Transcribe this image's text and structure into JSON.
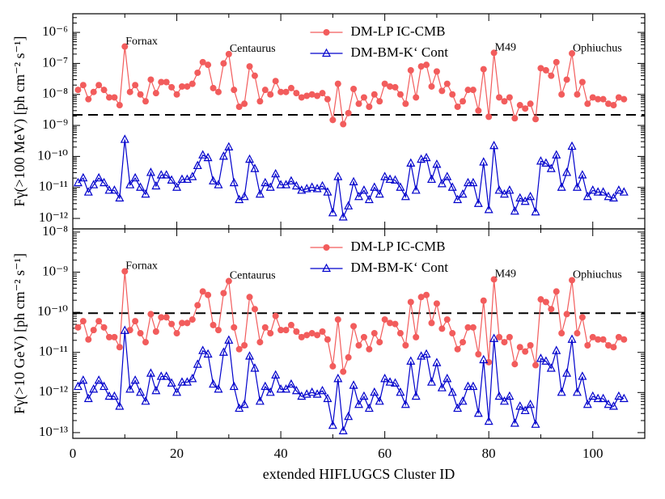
{
  "chart_data": [
    {
      "type": "line",
      "log_y": true,
      "ylabel": "Fγ(>100 MeV) [ph cm⁻² s⁻¹]",
      "xlim": [
        0,
        110
      ],
      "xticks": [
        0,
        20,
        40,
        60,
        80,
        100
      ],
      "xtick_labels": false,
      "ylim": [
        4.6e-13,
        4e-06
      ],
      "yticks": [
        {
          "value": 1e-12,
          "label": "10⁻¹²"
        },
        {
          "value": 1e-11,
          "label": "10⁻¹¹"
        },
        {
          "value": 1e-10,
          "label": "10⁻¹⁰"
        },
        {
          "value": 1e-09,
          "label": "10⁻⁹"
        },
        {
          "value": 1e-08,
          "label": "10⁻⁸"
        },
        {
          "value": 1e-07,
          "label": "10⁻⁷"
        },
        {
          "value": 1e-06,
          "label": "10⁻⁶"
        }
      ],
      "hline": 2.2e-09,
      "legend": "upper center",
      "x": [
        1,
        2,
        3,
        4,
        5,
        6,
        7,
        8,
        9,
        10,
        11,
        12,
        13,
        14,
        15,
        16,
        17,
        18,
        19,
        20,
        21,
        22,
        23,
        24,
        25,
        26,
        27,
        28,
        29,
        30,
        31,
        32,
        33,
        34,
        35,
        36,
        37,
        38,
        39,
        40,
        41,
        42,
        43,
        44,
        45,
        46,
        47,
        48,
        49,
        50,
        51,
        52,
        53,
        54,
        55,
        56,
        57,
        58,
        59,
        60,
        61,
        62,
        63,
        64,
        65,
        66,
        67,
        68,
        69,
        70,
        71,
        72,
        73,
        74,
        75,
        76,
        77,
        78,
        79,
        80,
        81,
        82,
        83,
        84,
        85,
        86,
        87,
        88,
        89,
        90,
        91,
        92,
        93,
        94,
        95,
        96,
        97,
        98,
        99,
        100,
        101,
        102,
        103,
        104,
        105,
        106
      ],
      "series": [
        {
          "name": "DM-LP IC-CMB",
          "color": "#f25c5c",
          "marker": "circle",
          "values": [
            1.4e-08,
            2e-08,
            7e-09,
            1.2e-08,
            2e-08,
            1.4e-08,
            8e-09,
            8e-09,
            4.5e-09,
            3.5e-07,
            1.2e-08,
            2e-08,
            1e-08,
            6e-09,
            3e-08,
            1.1e-08,
            2.5e-08,
            2.5e-08,
            1.7e-08,
            1e-08,
            1.8e-08,
            1.8e-08,
            2.2e-08,
            5e-08,
            1.1e-07,
            9e-08,
            1.6e-08,
            1.2e-08,
            1e-07,
            2e-07,
            1.4e-08,
            4e-09,
            5e-09,
            8e-08,
            4e-08,
            6e-09,
            1.4e-08,
            1e-08,
            2.7e-08,
            1.2e-08,
            1.2e-08,
            1.6e-08,
            1.1e-08,
            8e-09,
            9e-09,
            1e-08,
            9e-09,
            1.1e-08,
            7e-09,
            1.5e-09,
            2.2e-08,
            1.1e-09,
            2.5e-09,
            1.5e-08,
            5e-09,
            8e-09,
            4e-09,
            1e-08,
            6e-09,
            2.2e-08,
            1.8e-08,
            1.7e-08,
            1e-08,
            5e-09,
            6e-08,
            8e-09,
            8e-08,
            9e-08,
            1.8e-08,
            5.5e-08,
            1.3e-08,
            2.2e-08,
            1e-08,
            4e-09,
            6e-09,
            1.4e-08,
            1.4e-08,
            3e-09,
            6.5e-08,
            1.9e-09,
            2.2e-07,
            8e-09,
            6e-09,
            8e-09,
            1.7e-09,
            4.5e-09,
            3.5e-09,
            5e-09,
            1.6e-09,
            7e-08,
            6e-08,
            4e-08,
            1.1e-07,
            1e-08,
            3e-08,
            2.1e-07,
            1e-08,
            2.5e-08,
            5e-09,
            8e-09,
            7e-09,
            7e-09,
            5e-09,
            4.5e-09,
            8e-09,
            7e-09
          ]
        },
        {
          "name": "DM-BM-K‘ Cont",
          "color": "#0000cc",
          "marker": "triangle",
          "values": [
            1.4e-11,
            2e-11,
            7e-12,
            1.2e-11,
            2e-11,
            1.4e-11,
            8e-12,
            8e-12,
            4.5e-12,
            3.5e-10,
            1.2e-11,
            2e-11,
            1e-11,
            6e-12,
            3e-11,
            1.1e-11,
            2.5e-11,
            2.5e-11,
            1.7e-11,
            1e-11,
            1.8e-11,
            1.8e-11,
            2.2e-11,
            5e-11,
            1.1e-10,
            9e-11,
            1.6e-11,
            1.2e-11,
            1e-10,
            2e-10,
            1.4e-11,
            4e-12,
            5e-12,
            8e-11,
            4e-11,
            6e-12,
            1.4e-11,
            1e-11,
            2.7e-11,
            1.2e-11,
            1.2e-11,
            1.6e-11,
            1.1e-11,
            8e-12,
            9e-12,
            1e-11,
            9e-12,
            1.1e-11,
            7e-12,
            1.5e-12,
            2.2e-11,
            1.1e-12,
            2.5e-12,
            1.5e-11,
            5e-12,
            8e-12,
            4e-12,
            1e-11,
            6e-12,
            2.2e-11,
            1.8e-11,
            1.7e-11,
            1e-11,
            5e-12,
            6e-11,
            8e-12,
            8e-11,
            9e-11,
            1.8e-11,
            5.5e-11,
            1.3e-11,
            2.2e-11,
            1e-11,
            4e-12,
            6e-12,
            1.4e-11,
            1.4e-11,
            3e-12,
            6.5e-11,
            1.9e-12,
            2.2e-10,
            8e-12,
            6e-12,
            8e-12,
            1.7e-12,
            4.5e-12,
            3.5e-12,
            5e-12,
            1.6e-12,
            7e-11,
            6e-11,
            4e-11,
            1.1e-10,
            1e-11,
            3e-11,
            2.1e-10,
            1e-11,
            2.5e-11,
            5e-12,
            8e-12,
            7e-12,
            7e-12,
            5e-12,
            4.5e-12,
            8e-12,
            7e-12
          ]
        }
      ],
      "annotations": [
        {
          "text": "Fornax",
          "x": 10
        },
        {
          "text": "Centaurus",
          "x": 30
        },
        {
          "text": "M49",
          "x": 81
        },
        {
          "text": "Ophiuchus",
          "x": 96
        }
      ]
    },
    {
      "type": "line",
      "log_y": true,
      "ylabel": "Fγ(>10 GeV) [ph cm⁻² s⁻¹]",
      "xlabel": "extended HIFLUGCS Cluster ID",
      "xlim": [
        0,
        110
      ],
      "xticks": [
        0,
        20,
        40,
        60,
        80,
        100
      ],
      "xtick_labels": true,
      "ylim": [
        7.2e-14,
        1.2e-08
      ],
      "yticks": [
        {
          "value": 1e-13,
          "label": "10⁻¹³"
        },
        {
          "value": 1e-12,
          "label": "10⁻¹²"
        },
        {
          "value": 1e-11,
          "label": "10⁻¹¹"
        },
        {
          "value": 1e-10,
          "label": "10⁻¹⁰"
        },
        {
          "value": 1e-09,
          "label": "10⁻⁹"
        },
        {
          "value": 1e-08,
          "label": "10⁻⁸"
        }
      ],
      "hline": 9.5e-11,
      "legend": "upper center",
      "x": [
        1,
        2,
        3,
        4,
        5,
        6,
        7,
        8,
        9,
        10,
        11,
        12,
        13,
        14,
        15,
        16,
        17,
        18,
        19,
        20,
        21,
        22,
        23,
        24,
        25,
        26,
        27,
        28,
        29,
        30,
        31,
        32,
        33,
        34,
        35,
        36,
        37,
        38,
        39,
        40,
        41,
        42,
        43,
        44,
        45,
        46,
        47,
        48,
        49,
        50,
        51,
        52,
        53,
        54,
        55,
        56,
        57,
        58,
        59,
        60,
        61,
        62,
        63,
        64,
        65,
        66,
        67,
        68,
        69,
        70,
        71,
        72,
        73,
        74,
        75,
        76,
        77,
        78,
        79,
        80,
        81,
        82,
        83,
        84,
        85,
        86,
        87,
        88,
        89,
        90,
        91,
        92,
        93,
        94,
        95,
        96,
        97,
        98,
        99,
        100,
        101,
        102,
        103,
        104,
        105,
        106
      ],
      "series": [
        {
          "name": "DM-LP IC-CMB",
          "color": "#f25c5c",
          "marker": "circle",
          "values": [
            4.2e-11,
            6e-11,
            2.1e-11,
            3.6e-11,
            6e-11,
            4.2e-11,
            2.4e-11,
            2.4e-11,
            1.35e-11,
            1.05e-09,
            3.6e-11,
            6e-11,
            3e-11,
            1.8e-11,
            9e-11,
            3.3e-11,
            7.5e-11,
            7.5e-11,
            5.1e-11,
            3e-11,
            5.4e-11,
            5.4e-11,
            6.6e-11,
            1.5e-10,
            3.3e-10,
            2.7e-10,
            4.8e-11,
            3.6e-11,
            3e-10,
            6e-10,
            4.2e-11,
            1.2e-11,
            1.5e-11,
            2.4e-10,
            1.2e-10,
            1.8e-11,
            4.2e-11,
            3e-11,
            8.1e-11,
            3.6e-11,
            3.6e-11,
            4.8e-11,
            3.3e-11,
            2.4e-11,
            2.7e-11,
            3e-11,
            2.7e-11,
            3.3e-11,
            2.1e-11,
            4.5e-12,
            6.6e-11,
            3.3e-12,
            7.5e-12,
            4.5e-11,
            1.5e-11,
            2.4e-11,
            1.2e-11,
            3e-11,
            1.8e-11,
            6.6e-11,
            5.4e-11,
            5.1e-11,
            3e-11,
            1.5e-11,
            1.8e-10,
            2.4e-11,
            2.4e-10,
            2.7e-10,
            5.4e-11,
            1.65e-10,
            3.9e-11,
            6.6e-11,
            3e-11,
            1.2e-11,
            1.8e-11,
            4.2e-11,
            4.2e-11,
            9e-12,
            1.95e-10,
            5.7e-12,
            6.6e-10,
            2.4e-11,
            1.8e-11,
            2.4e-11,
            5.1e-12,
            1.35e-11,
            1.05e-11,
            1.5e-11,
            4.8e-12,
            2.1e-10,
            1.8e-10,
            1.2e-10,
            3.3e-10,
            3e-11,
            9e-11,
            6.3e-10,
            3e-11,
            7.5e-11,
            1.5e-11,
            2.4e-11,
            2.1e-11,
            2.1e-11,
            1.5e-11,
            1.35e-11,
            2.4e-11,
            2.1e-11
          ]
        },
        {
          "name": "DM-BM-K‘ Cont",
          "color": "#0000cc",
          "marker": "triangle",
          "values": [
            1.4e-12,
            2e-12,
            7e-13,
            1.2e-12,
            2e-12,
            1.4e-12,
            8e-13,
            8e-13,
            4.5e-13,
            3.5e-11,
            1.2e-12,
            2e-12,
            1e-12,
            6e-13,
            3e-12,
            1.1e-12,
            2.5e-12,
            2.5e-12,
            1.7e-12,
            1e-12,
            1.8e-12,
            1.8e-12,
            2.2e-12,
            5e-12,
            1.1e-11,
            9e-12,
            1.6e-12,
            1.2e-12,
            1e-11,
            2e-11,
            1.4e-12,
            4e-13,
            5e-13,
            8e-12,
            4e-12,
            6e-13,
            1.4e-12,
            1e-12,
            2.7e-12,
            1.2e-12,
            1.2e-12,
            1.6e-12,
            1.1e-12,
            8e-13,
            9e-13,
            1e-12,
            9e-13,
            1.1e-12,
            7e-13,
            1.5e-13,
            2.2e-12,
            1.1e-13,
            2.5e-13,
            1.5e-12,
            5e-13,
            8e-13,
            4e-13,
            1e-12,
            6e-13,
            2.2e-12,
            1.8e-12,
            1.7e-12,
            1e-12,
            5e-13,
            6e-12,
            8e-13,
            8e-12,
            9e-12,
            1.8e-12,
            5.5e-12,
            1.3e-12,
            2.2e-12,
            1e-12,
            4e-13,
            6e-13,
            1.4e-12,
            1.4e-12,
            3e-13,
            6.5e-12,
            1.9e-13,
            2.2e-11,
            8e-13,
            6e-13,
            8e-13,
            1.7e-13,
            4.5e-13,
            3.5e-13,
            5e-13,
            1.6e-13,
            7e-12,
            6e-12,
            4e-12,
            1.1e-11,
            1e-12,
            3e-12,
            2.1e-11,
            1e-12,
            2.5e-12,
            5e-13,
            8e-13,
            7e-13,
            7e-13,
            5e-13,
            4.5e-13,
            8e-13,
            7e-13
          ]
        }
      ],
      "annotations": [
        {
          "text": "Fornax",
          "x": 10
        },
        {
          "text": "Centaurus",
          "x": 30
        },
        {
          "text": "M49",
          "x": 81
        },
        {
          "text": "Ophiuchus",
          "x": 96
        }
      ]
    }
  ]
}
